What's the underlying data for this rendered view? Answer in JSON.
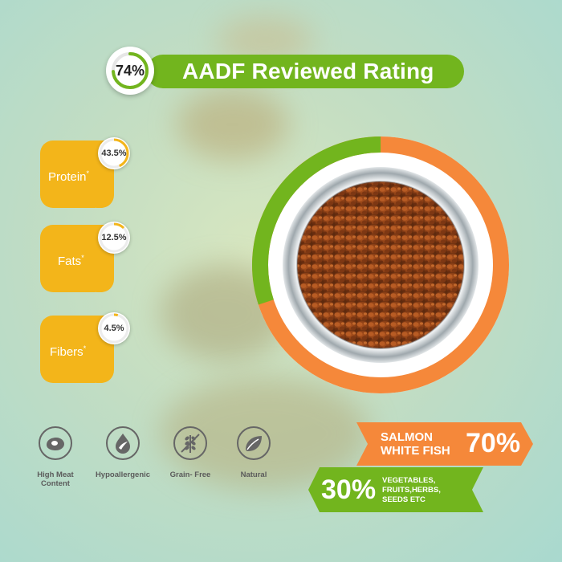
{
  "rating": {
    "value": "74%",
    "label": "AADF Reviewed Rating",
    "fraction": 0.74
  },
  "nutrients": [
    {
      "name": "Protein",
      "mark": "*",
      "value": "43.5%",
      "fraction": 0.435
    },
    {
      "name": "Fats",
      "mark": "*",
      "value": "12.5%",
      "fraction": 0.125
    },
    {
      "name": "Fibers",
      "mark": "*",
      "value": "4.5%",
      "fraction": 0.045
    }
  ],
  "bowl_ring": {
    "green_fraction": 0.3,
    "orange_fraction": 0.7
  },
  "features": [
    {
      "icon": "meat-icon",
      "label_line1": "High Meat",
      "label_line2": "Content"
    },
    {
      "icon": "drop-leaf-icon",
      "label_line1": "Hypoallergenic",
      "label_line2": ""
    },
    {
      "icon": "wheat-icon",
      "label_line1": "Grain- Free",
      "label_line2": ""
    },
    {
      "icon": "leaf-icon",
      "label_line1": "Natural",
      "label_line2": ""
    }
  ],
  "composition": {
    "fish": {
      "line1": "SALMON",
      "line2": "WHITE FISH",
      "percent": "70%"
    },
    "veg": {
      "percent": "30%",
      "line1": "VEGETABLES,",
      "line2": "FRUITS,HERBS,",
      "line3": "SEEDS ETC"
    }
  },
  "colors": {
    "green": "#72b51e",
    "orange": "#f5883a",
    "yellow": "#f3b51a"
  }
}
